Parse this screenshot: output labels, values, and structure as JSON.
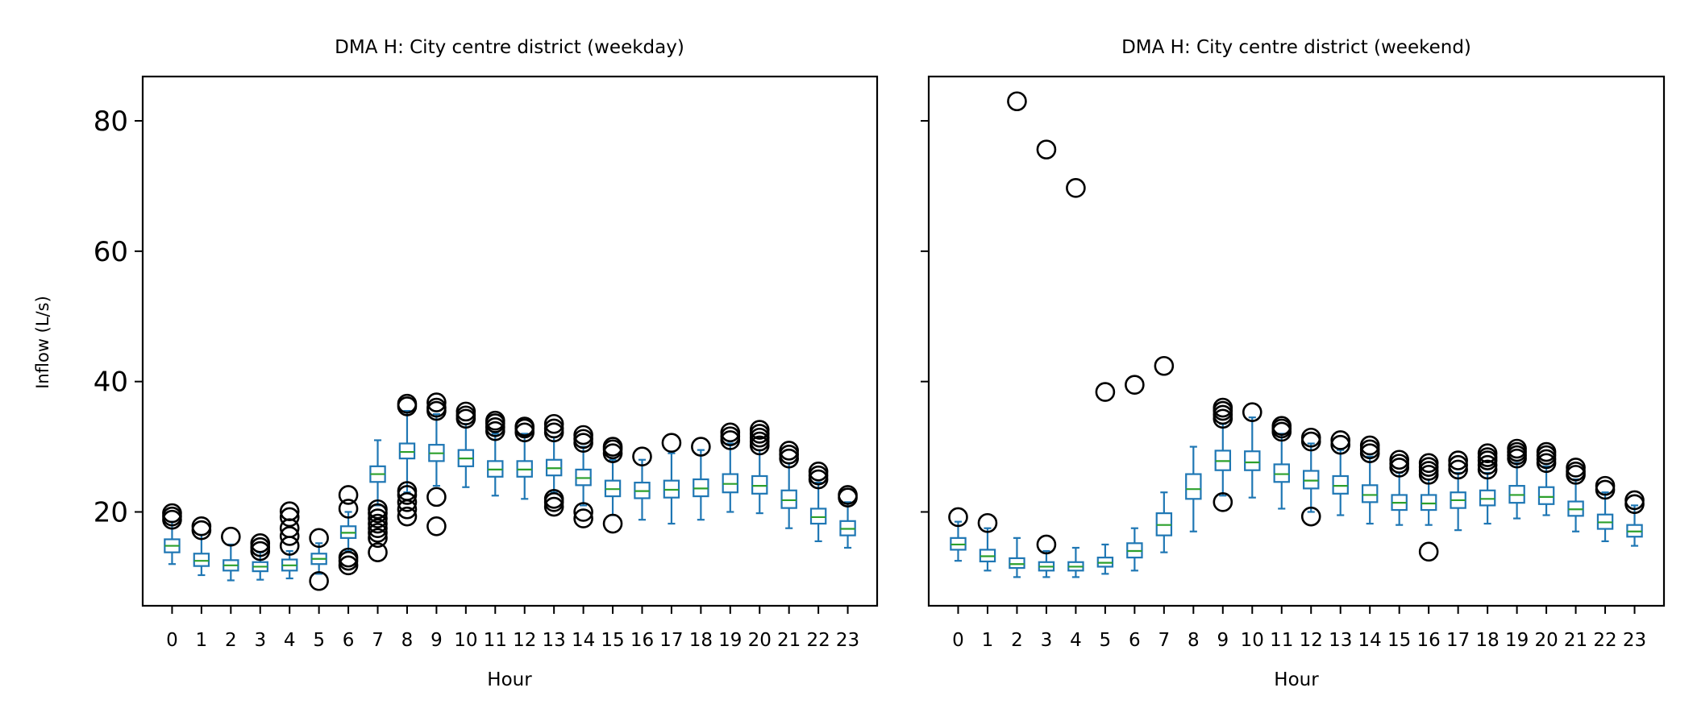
{
  "figure": {
    "ylabel": "Inflow (L/s)",
    "yticks": [
      20,
      40,
      60,
      80
    ]
  },
  "chart_data": [
    {
      "type": "box",
      "title": "DMA H: City centre district (weekday)",
      "xlabel": "Hour",
      "ylabel": "Inflow (L/s)",
      "ylim": [
        5.6,
        86.8
      ],
      "categories": [
        "0",
        "1",
        "2",
        "3",
        "4",
        "5",
        "6",
        "7",
        "8",
        "9",
        "10",
        "11",
        "12",
        "13",
        "14",
        "15",
        "16",
        "17",
        "18",
        "19",
        "20",
        "21",
        "22",
        "23"
      ],
      "boxes": [
        {
          "whislo": 12.0,
          "q1": 13.8,
          "med": 14.8,
          "q3": 15.8,
          "whishi": 18.5,
          "fliers": [
            18.8,
            19.3,
            19.8
          ]
        },
        {
          "whislo": 10.3,
          "q1": 11.7,
          "med": 12.5,
          "q3": 13.6,
          "whishi": 16.5,
          "fliers": [
            17.2,
            17.8
          ]
        },
        {
          "whislo": 9.5,
          "q1": 11.0,
          "med": 11.8,
          "q3": 12.6,
          "whishi": 15.0,
          "fliers": [
            16.2
          ]
        },
        {
          "whislo": 9.6,
          "q1": 10.9,
          "med": 11.6,
          "q3": 12.3,
          "whishi": 13.8,
          "fliers": [
            14.0,
            14.6,
            15.2
          ]
        },
        {
          "whislo": 9.8,
          "q1": 11.0,
          "med": 11.8,
          "q3": 12.7,
          "whishi": 14.0,
          "fliers": [
            14.8,
            16.3,
            17.5,
            19.2,
            20.1
          ]
        },
        {
          "whislo": 10.5,
          "q1": 12.0,
          "med": 12.8,
          "q3": 13.6,
          "whishi": 15.2,
          "fliers": [
            9.4,
            16.0
          ]
        },
        {
          "whislo": 14.0,
          "q1": 16.0,
          "med": 16.8,
          "q3": 17.8,
          "whishi": 20.0,
          "fliers": [
            11.8,
            12.5,
            13.0,
            20.5,
            22.6
          ]
        },
        {
          "whislo": 21.0,
          "q1": 24.6,
          "med": 25.8,
          "q3": 27.0,
          "whishi": 31.0,
          "fliers": [
            13.8,
            16.0,
            16.8,
            17.5,
            18.2,
            19.0,
            19.8,
            20.4
          ]
        },
        {
          "whislo": 23.0,
          "q1": 28.2,
          "med": 29.2,
          "q3": 30.5,
          "whishi": 35.5,
          "fliers": [
            19.3,
            20.4,
            21.5,
            22.6,
            23.2,
            36.2,
            36.6
          ]
        },
        {
          "whislo": 24.0,
          "q1": 27.8,
          "med": 29.0,
          "q3": 30.3,
          "whishi": 35.0,
          "fliers": [
            17.8,
            22.3,
            35.5,
            36.0,
            36.8
          ]
        },
        {
          "whislo": 23.8,
          "q1": 27.0,
          "med": 28.2,
          "q3": 29.5,
          "whishi": 33.5,
          "fliers": [
            34.3,
            34.8,
            35.4
          ]
        },
        {
          "whislo": 22.5,
          "q1": 25.4,
          "med": 26.5,
          "q3": 27.8,
          "whishi": 32.0,
          "fliers": [
            32.4,
            33.0,
            33.6,
            34.0
          ]
        },
        {
          "whislo": 22.0,
          "q1": 25.4,
          "med": 26.5,
          "q3": 27.8,
          "whishi": 32.0,
          "fliers": [
            32.2,
            32.8,
            33.1
          ]
        },
        {
          "whislo": 23.0,
          "q1": 25.6,
          "med": 26.7,
          "q3": 28.0,
          "whishi": 31.5,
          "fliers": [
            20.8,
            21.5,
            22.0,
            32.2,
            32.8,
            33.5
          ]
        },
        {
          "whislo": 21.0,
          "q1": 24.1,
          "med": 25.2,
          "q3": 26.5,
          "whishi": 30.0,
          "fliers": [
            19.0,
            20.0,
            30.6,
            31.2,
            31.8
          ]
        },
        {
          "whislo": 19.5,
          "q1": 22.4,
          "med": 23.5,
          "q3": 24.8,
          "whishi": 28.0,
          "fliers": [
            18.2,
            29.0,
            29.6,
            30.0
          ]
        },
        {
          "whislo": 18.8,
          "q1": 22.1,
          "med": 23.2,
          "q3": 24.5,
          "whishi": 28.0,
          "fliers": [
            28.5
          ]
        },
        {
          "whislo": 18.2,
          "q1": 22.2,
          "med": 23.4,
          "q3": 24.8,
          "whishi": 29.0,
          "fliers": [
            30.6
          ]
        },
        {
          "whislo": 18.8,
          "q1": 22.4,
          "med": 23.6,
          "q3": 25.0,
          "whishi": 29.5,
          "fliers": [
            30.0
          ]
        },
        {
          "whislo": 20.0,
          "q1": 23.0,
          "med": 24.3,
          "q3": 25.8,
          "whishi": 30.5,
          "fliers": [
            31.0,
            31.6,
            32.2
          ]
        },
        {
          "whislo": 19.8,
          "q1": 22.8,
          "med": 24.0,
          "q3": 25.5,
          "whishi": 29.5,
          "fliers": [
            30.2,
            30.8,
            31.4,
            32.0,
            32.6
          ]
        },
        {
          "whislo": 17.5,
          "q1": 20.6,
          "med": 21.8,
          "q3": 23.3,
          "whishi": 27.5,
          "fliers": [
            28.2,
            28.8,
            29.4
          ]
        },
        {
          "whislo": 15.5,
          "q1": 18.2,
          "med": 19.2,
          "q3": 20.5,
          "whishi": 24.5,
          "fliers": [
            25.0,
            25.6,
            26.2
          ]
        },
        {
          "whislo": 14.5,
          "q1": 16.4,
          "med": 17.4,
          "q3": 18.6,
          "whishi": 21.5,
          "fliers": [
            22.2,
            22.6
          ]
        }
      ]
    },
    {
      "type": "box",
      "title": "DMA H: City centre district (weekend)",
      "xlabel": "Hour",
      "ylim": [
        5.6,
        86.8
      ],
      "categories": [
        "0",
        "1",
        "2",
        "3",
        "4",
        "5",
        "6",
        "7",
        "8",
        "9",
        "10",
        "11",
        "12",
        "13",
        "14",
        "15",
        "16",
        "17",
        "18",
        "19",
        "20",
        "21",
        "22",
        "23"
      ],
      "boxes": [
        {
          "whislo": 12.5,
          "q1": 14.2,
          "med": 15.0,
          "q3": 16.0,
          "whishi": 18.5,
          "fliers": [
            19.2
          ]
        },
        {
          "whislo": 11.0,
          "q1": 12.4,
          "med": 13.2,
          "q3": 14.2,
          "whishi": 17.5,
          "fliers": [
            18.3
          ]
        },
        {
          "whislo": 10.0,
          "q1": 11.4,
          "med": 12.0,
          "q3": 12.9,
          "whishi": 16.0,
          "fliers": [
            83.0
          ]
        },
        {
          "whislo": 10.0,
          "q1": 11.0,
          "med": 11.6,
          "q3": 12.3,
          "whishi": 14.0,
          "fliers": [
            15.0,
            75.6
          ]
        },
        {
          "whislo": 10.0,
          "q1": 11.0,
          "med": 11.6,
          "q3": 12.3,
          "whishi": 14.5,
          "fliers": [
            69.7
          ]
        },
        {
          "whislo": 10.5,
          "q1": 11.6,
          "med": 12.2,
          "q3": 13.0,
          "whishi": 15.0,
          "fliers": [
            38.4
          ]
        },
        {
          "whislo": 11.0,
          "q1": 13.0,
          "med": 14.0,
          "q3": 15.2,
          "whishi": 17.5,
          "fliers": [
            39.5
          ]
        },
        {
          "whislo": 13.8,
          "q1": 16.4,
          "med": 18.0,
          "q3": 19.8,
          "whishi": 23.0,
          "fliers": [
            42.4
          ]
        },
        {
          "whislo": 17.0,
          "q1": 22.0,
          "med": 23.5,
          "q3": 25.8,
          "whishi": 30.0,
          "fliers": []
        },
        {
          "whislo": 22.5,
          "q1": 26.4,
          "med": 27.8,
          "q3": 29.4,
          "whishi": 33.5,
          "fliers": [
            21.5,
            34.3,
            34.9,
            35.5,
            36.0
          ]
        },
        {
          "whislo": 22.2,
          "q1": 26.4,
          "med": 27.6,
          "q3": 29.3,
          "whishi": 34.5,
          "fliers": [
            35.3
          ]
        },
        {
          "whislo": 20.5,
          "q1": 24.6,
          "med": 25.8,
          "q3": 27.3,
          "whishi": 32.0,
          "fliers": [
            32.3,
            32.8,
            33.2
          ]
        },
        {
          "whislo": 20.0,
          "q1": 23.6,
          "med": 24.8,
          "q3": 26.3,
          "whishi": 30.5,
          "fliers": [
            19.3,
            30.8,
            31.4
          ]
        },
        {
          "whislo": 19.5,
          "q1": 22.8,
          "med": 24.0,
          "q3": 25.5,
          "whishi": 29.5,
          "fliers": [
            30.3,
            31.0
          ]
        },
        {
          "whislo": 18.2,
          "q1": 21.5,
          "med": 22.6,
          "q3": 24.1,
          "whishi": 28.5,
          "fliers": [
            29.0,
            29.6,
            30.2
          ]
        },
        {
          "whislo": 18.0,
          "q1": 20.3,
          "med": 21.4,
          "q3": 22.6,
          "whishi": 26.0,
          "fliers": [
            26.8,
            27.4,
            28.0
          ]
        },
        {
          "whislo": 18.0,
          "q1": 20.3,
          "med": 21.3,
          "q3": 22.6,
          "whishi": 25.0,
          "fliers": [
            13.9,
            25.7,
            26.3,
            26.9,
            27.5
          ]
        },
        {
          "whislo": 17.2,
          "q1": 20.6,
          "med": 21.8,
          "q3": 23.0,
          "whishi": 26.0,
          "fliers": [
            26.5,
            27.2,
            27.9
          ]
        },
        {
          "whislo": 18.2,
          "q1": 21.0,
          "med": 22.0,
          "q3": 23.3,
          "whishi": 26.0,
          "fliers": [
            26.5,
            27.2,
            27.9,
            28.4,
            29.0
          ]
        },
        {
          "whislo": 19.0,
          "q1": 21.4,
          "med": 22.6,
          "q3": 24.0,
          "whishi": 27.5,
          "fliers": [
            28.2,
            28.7,
            29.2,
            29.7
          ]
        },
        {
          "whislo": 19.5,
          "q1": 21.2,
          "med": 22.3,
          "q3": 23.8,
          "whishi": 27.0,
          "fliers": [
            27.5,
            28.1,
            28.7,
            29.2
          ]
        },
        {
          "whislo": 17.0,
          "q1": 19.4,
          "med": 20.4,
          "q3": 21.6,
          "whishi": 25.0,
          "fliers": [
            25.7,
            26.2,
            26.8
          ]
        },
        {
          "whislo": 15.5,
          "q1": 17.4,
          "med": 18.4,
          "q3": 19.6,
          "whishi": 23.0,
          "fliers": [
            23.4,
            24.0
          ]
        },
        {
          "whislo": 14.8,
          "q1": 16.2,
          "med": 17.0,
          "q3": 18.0,
          "whishi": 21.0,
          "fliers": [
            21.2,
            21.8
          ]
        }
      ]
    }
  ],
  "colors": {
    "box": "#1f77b4",
    "median": "#2ca02c",
    "flier": "#000000",
    "axis": "#000000",
    "background": "#ffffff"
  }
}
